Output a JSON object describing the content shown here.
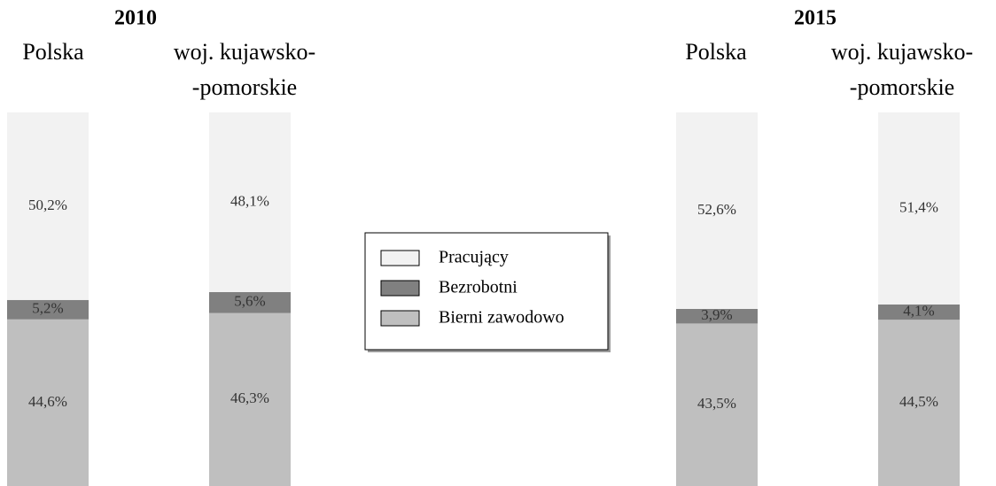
{
  "chart_data": {
    "type": "bar",
    "stacked": true,
    "groups": [
      "2010",
      "2015"
    ],
    "categories": [
      "Polska",
      [
        "woj. kujawsko-",
        "-pomorskie"
      ],
      "Polska",
      [
        "woj. kujawsko-",
        "-pomorskie"
      ]
    ],
    "ylim": [
      0,
      100
    ],
    "series": [
      {
        "name": "Bierni zawodowo",
        "color": "#bfbfbf",
        "values": [
          44.6,
          46.3,
          43.5,
          44.5
        ],
        "value_labels": [
          "44,6%",
          "46,3%",
          "43,5%",
          "44,5%"
        ]
      },
      {
        "name": "Bezrobotni",
        "color": "#808080",
        "values": [
          5.2,
          5.6,
          3.9,
          4.1
        ],
        "value_labels": [
          "5,2%",
          "5,6%",
          "3,9%",
          "4,1%"
        ]
      },
      {
        "name": "Pracujący",
        "color": "#f2f2f2",
        "values": [
          50.2,
          48.1,
          52.6,
          51.4
        ],
        "value_labels": [
          "50,2%",
          "48,1%",
          "52,6%",
          "51,4%"
        ]
      }
    ]
  }
}
